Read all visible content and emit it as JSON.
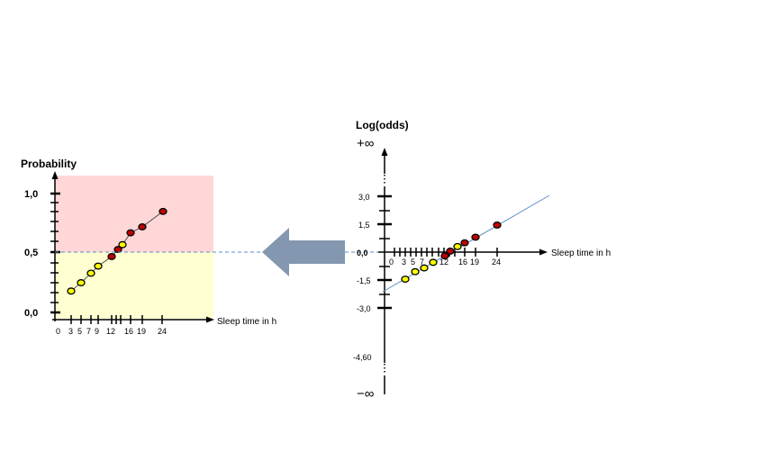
{
  "left_chart": {
    "ylabel": "Probability",
    "xlabel": "Sleep time in h",
    "y_ticks": [
      "1,0",
      "0,5",
      "0,0"
    ],
    "x_ticks": [
      "0",
      "3",
      "5",
      "7",
      "9",
      "12",
      "16",
      "19",
      "24"
    ],
    "points": [
      {
        "x": 3,
        "p": 0.18,
        "color": "#ffff00"
      },
      {
        "x": 5,
        "p": 0.25,
        "color": "#ffff00"
      },
      {
        "x": 7,
        "p": 0.33,
        "color": "#ffff00"
      },
      {
        "x": 9,
        "p": 0.39,
        "color": "#ffff00"
      },
      {
        "x": 12,
        "p": 0.47,
        "color": "#c00000"
      },
      {
        "x": 13,
        "p": 0.53,
        "color": "#c00000"
      },
      {
        "x": 14,
        "p": 0.57,
        "color": "#ffff00"
      },
      {
        "x": 16,
        "p": 0.67,
        "color": "#c00000"
      },
      {
        "x": 19,
        "p": 0.72,
        "color": "#c00000"
      },
      {
        "x": 24,
        "p": 0.85,
        "color": "#c00000"
      }
    ],
    "upper_region_color": "#ffd7d7",
    "lower_region_color": "#ffffd2"
  },
  "right_chart": {
    "ylabel": "Log(odds)",
    "xlabel": "Sleep time in h",
    "plus_infinity": "+∞",
    "minus_infinity": "−∞",
    "y_ticks": [
      {
        "value": 3.0,
        "label": "3,0"
      },
      {
        "value": 1.5,
        "label": "1,5"
      },
      {
        "value": 0.0,
        "label": "0,0"
      },
      {
        "value": -1.5,
        "label": "-1,5"
      },
      {
        "value": -3.0,
        "label": "-3,0"
      },
      {
        "value": -4.6,
        "label": "-4,60"
      }
    ],
    "x_ticks": [
      "0",
      "3",
      "5",
      "7",
      "12",
      "16",
      "19",
      "24"
    ],
    "points": [
      {
        "x": 3,
        "logodds": -1.45,
        "color": "#ffff00"
      },
      {
        "x": 5,
        "logodds": -1.05,
        "color": "#ffff00"
      },
      {
        "x": 7,
        "logodds": -0.85,
        "color": "#ffff00"
      },
      {
        "x": 9,
        "logodds": -0.55,
        "color": "#ffff00"
      },
      {
        "x": 12,
        "logodds": -0.2,
        "color": "#c00000"
      },
      {
        "x": 13,
        "logodds": 0.05,
        "color": "#c00000"
      },
      {
        "x": 14,
        "logodds": 0.3,
        "color": "#ffff00"
      },
      {
        "x": 16,
        "logodds": 0.5,
        "color": "#c00000"
      },
      {
        "x": 19,
        "logodds": 0.8,
        "color": "#c00000"
      },
      {
        "x": 24,
        "logodds": 1.45,
        "color": "#c00000"
      }
    ],
    "fit_line_color": "#5b8cc6"
  },
  "arrow": {
    "color": "#8497b0",
    "dashed_line_color": "#5b8cc6"
  }
}
